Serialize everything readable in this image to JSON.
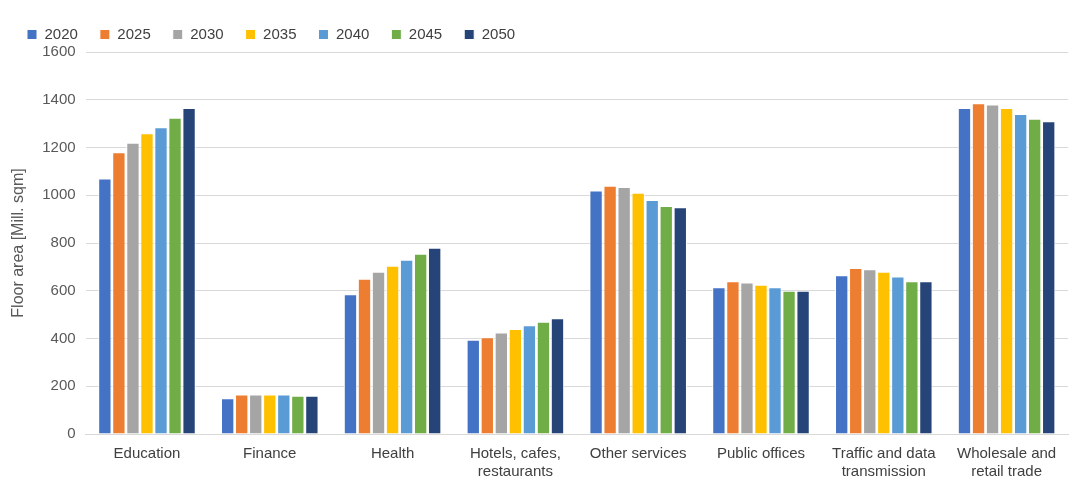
{
  "chart_data": {
    "type": "bar",
    "ylabel": "Floor area [Mill. sqm]",
    "categories": [
      "Education",
      "Finance",
      "Health",
      "Hotels, cafes, restaurants",
      "Other services",
      "Public offices",
      "Traffic and data transmission",
      "Wholesale and retail trade"
    ],
    "series": [
      {
        "name": "2020",
        "color": "#4472c4",
        "values": [
          1070,
          150,
          585,
          395,
          1020,
          615,
          665,
          1365
        ]
      },
      {
        "name": "2025",
        "color": "#ed7d31",
        "values": [
          1180,
          165,
          650,
          405,
          1040,
          640,
          695,
          1385
        ]
      },
      {
        "name": "2030",
        "color": "#a5a5a5",
        "values": [
          1220,
          165,
          680,
          425,
          1035,
          635,
          690,
          1380
        ]
      },
      {
        "name": "2035",
        "color": "#ffc000",
        "values": [
          1260,
          165,
          705,
          440,
          1010,
          625,
          680,
          1365
        ]
      },
      {
        "name": "2040",
        "color": "#5b9bd5",
        "values": [
          1285,
          165,
          730,
          455,
          980,
          615,
          660,
          1340
        ]
      },
      {
        "name": "2045",
        "color": "#70ad47",
        "values": [
          1325,
          160,
          755,
          470,
          955,
          600,
          640,
          1320
        ]
      },
      {
        "name": "2050",
        "color": "#264478",
        "values": [
          1365,
          160,
          780,
          485,
          950,
          600,
          640,
          1310
        ]
      }
    ],
    "ylim": [
      0,
      1600
    ],
    "yticks": [
      0,
      200,
      400,
      600,
      800,
      1000,
      1200,
      1400,
      1600
    ],
    "grid": "y",
    "legend": "top"
  }
}
